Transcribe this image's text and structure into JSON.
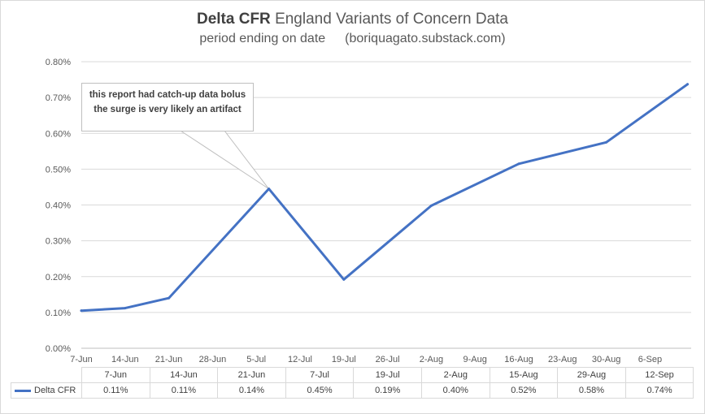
{
  "chart_data": {
    "type": "line",
    "title_bold": "Delta CFR",
    "title_rest": "England Variants of Concern Data",
    "subtitle": "period ending on date",
    "subtitle_source": "(boriquagato.substack.com)",
    "x_axis_ticks": [
      "7-Jun",
      "14-Jun",
      "21-Jun",
      "28-Jun",
      "5-Jul",
      "12-Jul",
      "19-Jul",
      "26-Jul",
      "2-Aug",
      "9-Aug",
      "16-Aug",
      "23-Aug",
      "30-Aug",
      "6-Sep"
    ],
    "y_axis_ticks": [
      "0.00%",
      "0.10%",
      "0.20%",
      "0.30%",
      "0.40%",
      "0.50%",
      "0.60%",
      "0.70%",
      "0.80%"
    ],
    "ylim": [
      0,
      0.8
    ],
    "series": [
      {
        "name": "Delta CFR",
        "color": "#4472c4",
        "points": [
          {
            "day": 0,
            "value": 0.105
          },
          {
            "day": 7,
            "value": 0.112
          },
          {
            "day": 14,
            "value": 0.14
          },
          {
            "day": 30,
            "value": 0.445
          },
          {
            "day": 42,
            "value": 0.192
          },
          {
            "day": 56,
            "value": 0.398
          },
          {
            "day": 70,
            "value": 0.515
          },
          {
            "day": 84,
            "value": 0.575
          },
          {
            "day": 97,
            "value": 0.737
          }
        ]
      }
    ],
    "table": {
      "dates": [
        "7-Jun",
        "14-Jun",
        "21-Jun",
        "7-Jul",
        "19-Jul",
        "2-Aug",
        "15-Aug",
        "29-Aug",
        "12-Sep"
      ],
      "values": [
        "0.11%",
        "0.11%",
        "0.14%",
        "0.45%",
        "0.19%",
        "0.40%",
        "0.52%",
        "0.58%",
        "0.74%"
      ]
    },
    "annotation": {
      "line1": "this report had catch-up  data bolus",
      "line2": "the surge is very likely  an artifact",
      "target_point_index": 3
    }
  }
}
